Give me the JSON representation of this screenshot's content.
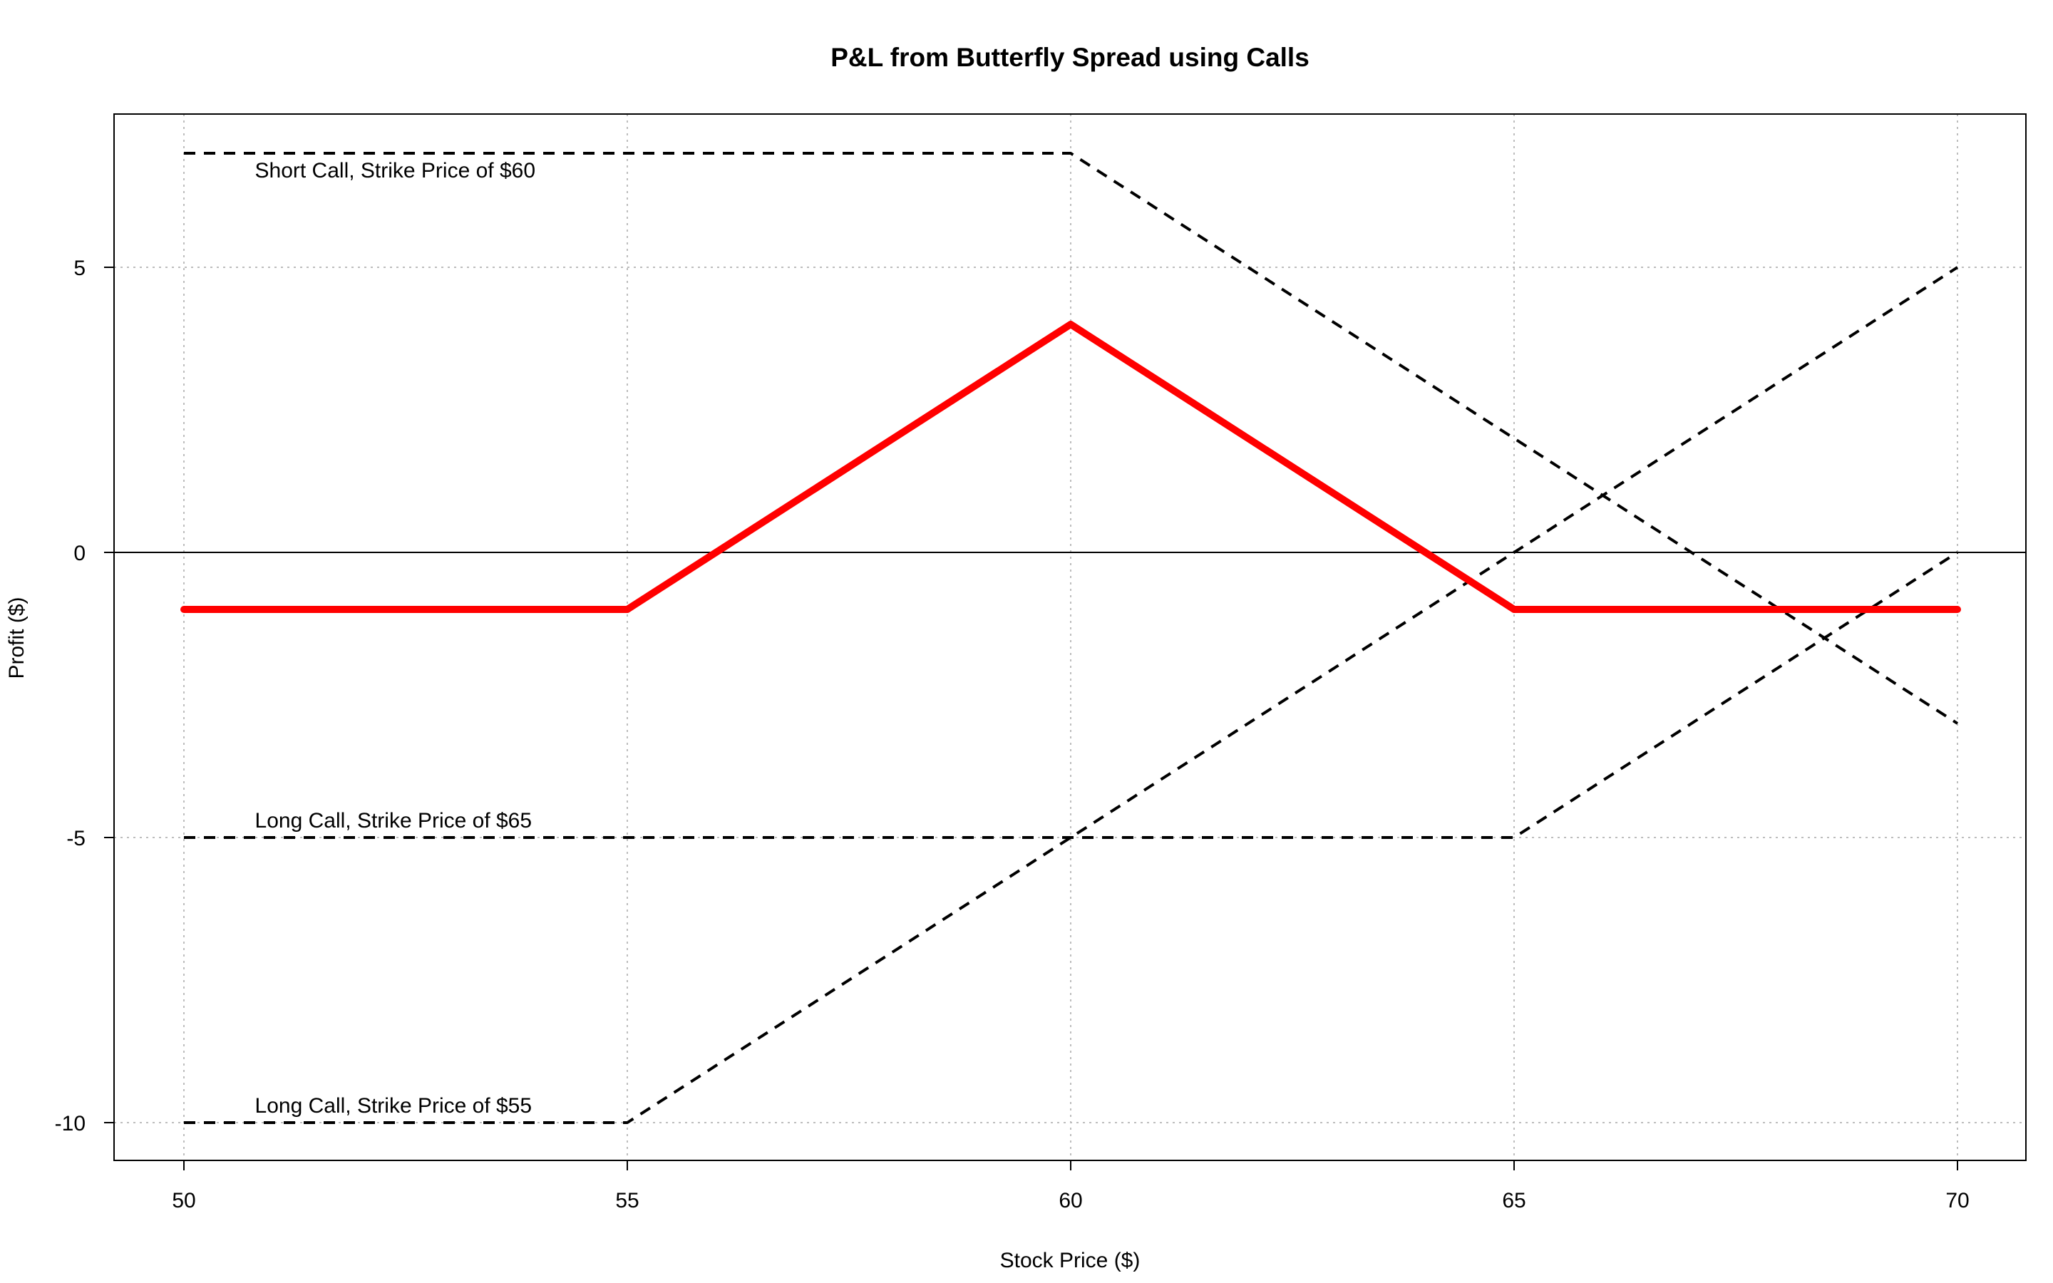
{
  "chart_data": {
    "type": "line",
    "title": "P&L from Butterfly Spread using Calls",
    "xlabel": "Stock Price ($)",
    "ylabel": "Profit ($)",
    "xlim": [
      50,
      70
    ],
    "ylim": [
      -10,
      7
    ],
    "x_ticks": [
      "50",
      "55",
      "60",
      "65",
      "70"
    ],
    "y_ticks": [
      "-10",
      "-5",
      "0",
      "5"
    ],
    "grid": true,
    "reference_line_y": 0,
    "series": [
      {
        "style": "solid",
        "color": "#ff0000",
        "points": [
          [
            50,
            -1
          ],
          [
            55,
            -1
          ],
          [
            60,
            4
          ],
          [
            65,
            -1
          ],
          [
            70,
            -1
          ]
        ]
      },
      {
        "style": "dashed",
        "color": "#000000",
        "points": [
          [
            50,
            7
          ],
          [
            60,
            7
          ],
          [
            70,
            -3
          ]
        ]
      },
      {
        "style": "dashed",
        "color": "#000000",
        "points": [
          [
            50,
            -5
          ],
          [
            65,
            -5
          ],
          [
            70,
            0
          ]
        ]
      },
      {
        "style": "dashed",
        "color": "#000000",
        "points": [
          [
            50,
            -10
          ],
          [
            55,
            -10
          ],
          [
            70,
            5
          ]
        ]
      }
    ],
    "annotations": [
      {
        "text": "Short Call, Strike Price of $60",
        "x": 50.8,
        "y": 6.7
      },
      {
        "text": "Long Call, Strike Price of $65",
        "x": 50.8,
        "y": -4.7
      },
      {
        "text": "Long Call, Strike Price of $55",
        "x": 50.8,
        "y": -9.7
      }
    ]
  }
}
